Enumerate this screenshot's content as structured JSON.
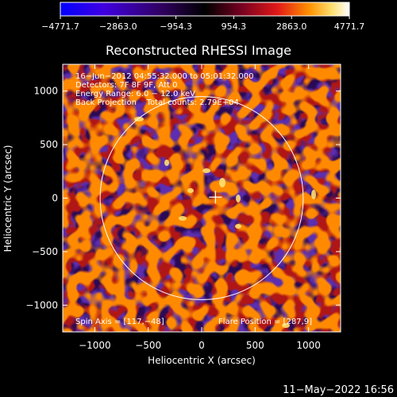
{
  "chart_data": {
    "type": "heatmap",
    "title": "Reconstructed RHESSI Image",
    "xlabel": "Heliocentric X (arcsec)",
    "ylabel": "Heliocentric Y (arcsec)",
    "xlim": [
      -1300,
      1300
    ],
    "ylim": [
      -1250,
      1250
    ],
    "x_ticks": [
      -1000,
      -500,
      0,
      500,
      1000
    ],
    "y_ticks": [
      -1000,
      -500,
      0,
      500,
      1000
    ],
    "x_tick_labels": [
      "−1000",
      "−500",
      "0",
      "500",
      "1000"
    ],
    "y_tick_labels": [
      "−1000",
      "−500",
      "0",
      "500",
      "1000"
    ],
    "colorbar": {
      "min": -4771.7,
      "max": 4771.7,
      "tick_labels": [
        "−4771.7",
        "−2863.0",
        "−954.3",
        "954.3",
        "2863.0",
        "4771.7"
      ],
      "colors": [
        "#0000ff",
        "#5a00d8",
        "#2a0050",
        "#000000",
        "#7a0028",
        "#e01818",
        "#ff8c00",
        "#ffe070",
        "#ffffff"
      ]
    },
    "solar_disk_radius_arcsec": 950,
    "flare_position": [
      287,
      9
    ],
    "spin_axis": [
      117,
      -48
    ],
    "info_lines": [
      "16−Jun−2012 04:55:32.000 to 05:01:32.000",
      "Detectors: 7F 8F 9F, Att 0",
      "Energy Range: 6.0 − 12.0 keV",
      "Back Projection    Total counts: 2.79E+04"
    ],
    "spin_axis_label": "Spin Axis = [117,−48]",
    "flare_position_label": "Flare Position = [287,9]"
  },
  "footer_timestamp": "11−May−2022 16:56"
}
